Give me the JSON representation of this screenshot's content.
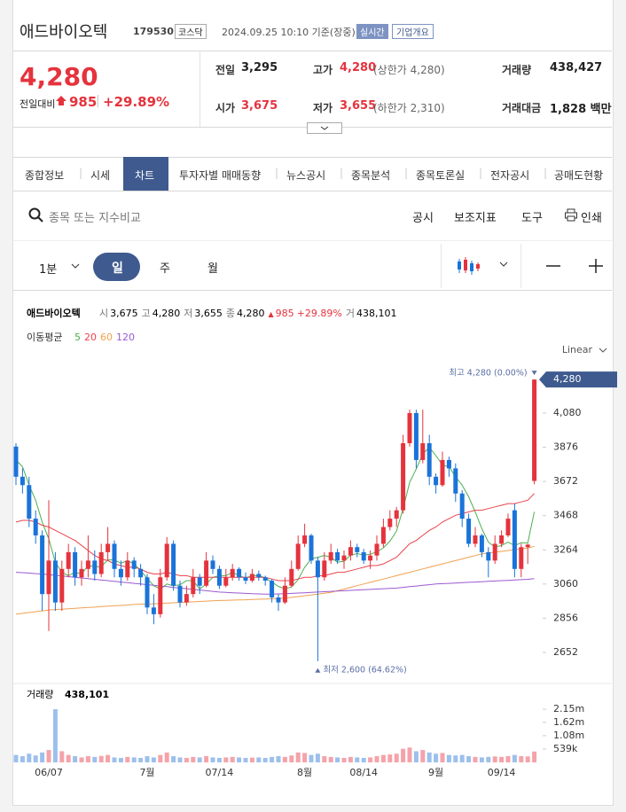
{
  "header": {
    "name": "애드바이오텍",
    "code": "179530",
    "market": "코스닥",
    "time": "2024.09.25 10:10 기준(장중)",
    "realtime": "실시간",
    "company": "기업개요"
  },
  "quote": {
    "price": "4,280",
    "change_label": "전일대비",
    "change": "985",
    "rate": "+29.89%",
    "items": [
      {
        "label": "전일",
        "value": "3,295"
      },
      {
        "label": "고가",
        "value": "4,280",
        "note": "(상한가 4,280)"
      },
      {
        "label": "거래량",
        "value": "438,427"
      },
      {
        "label": "시가",
        "value": "3,675"
      },
      {
        "label": "저가",
        "value": "3,655",
        "note": "(하한가 2,310)"
      },
      {
        "label": "거래대금",
        "value": "1,828 백만"
      }
    ]
  },
  "tabs": [
    "종합정보",
    "시세",
    "차트",
    "투자자별 매매동향",
    "뉴스공시",
    "종목분석",
    "종목토론실",
    "전자공시",
    "공매도현황"
  ],
  "toolbar": {
    "search": "종목 또는 지수비교",
    "tools": [
      "공시",
      "보조지표",
      "도구",
      "인쇄"
    ]
  },
  "periods": [
    "1분",
    "일",
    "주",
    "월"
  ],
  "chart_data": {
    "type": "candlestick",
    "scale": "Linear",
    "legend": {
      "name": "애드바이오텍",
      "stats": [
        {
          "label": "시",
          "value": "3,675"
        },
        {
          "label": "고",
          "value": "4,280"
        },
        {
          "label": "저",
          "value": "3,655"
        },
        {
          "label": "종",
          "value": "4,280"
        }
      ],
      "change": "985",
      "rate": "+29.89%",
      "volume": {
        "label": "거",
        "value": "438,101"
      }
    },
    "ma_label": "이동평균",
    "categories": [
      null,
      null,
      null,
      null,
      null,
      "06/07",
      null,
      null,
      null,
      null,
      null,
      null,
      null,
      null,
      null,
      null,
      null,
      null,
      null,
      null,
      "7월",
      null,
      null,
      null,
      null,
      null,
      null,
      null,
      null,
      null,
      null,
      "07/14",
      null,
      null,
      null,
      null,
      null,
      null,
      null,
      null,
      null,
      null,
      null,
      null,
      "8월",
      null,
      null,
      null,
      null,
      null,
      null,
      null,
      null,
      "08/14",
      null,
      null,
      null,
      null,
      null,
      null,
      null,
      null,
      null,
      null,
      "9월",
      null,
      null,
      null,
      null,
      null,
      null,
      null,
      null,
      null,
      "09/14",
      null,
      null,
      null,
      null,
      null
    ],
    "ohlc": [
      [
        3880,
        3900,
        3650,
        3700
      ],
      [
        3700,
        3750,
        3600,
        3650
      ],
      [
        3650,
        3700,
        3400,
        3450
      ],
      [
        3450,
        3500,
        3300,
        3350
      ],
      [
        3350,
        3380,
        2900,
        3000
      ],
      [
        3000,
        3560,
        2780,
        3200
      ],
      [
        3200,
        3250,
        2900,
        2950
      ],
      [
        2950,
        3200,
        2900,
        3150
      ],
      [
        3150,
        3300,
        3100,
        3250
      ],
      [
        3250,
        3280,
        3050,
        3100
      ],
      [
        3100,
        3200,
        3050,
        3150
      ],
      [
        3150,
        3350,
        3100,
        3200
      ],
      [
        3200,
        3260,
        3080,
        3120
      ],
      [
        3120,
        3300,
        3100,
        3250
      ],
      [
        3250,
        3400,
        3200,
        3300
      ],
      [
        3300,
        3320,
        3100,
        3150
      ],
      [
        3150,
        3200,
        3050,
        3100
      ],
      [
        3100,
        3250,
        3080,
        3200
      ],
      [
        3200,
        3220,
        3100,
        3150
      ],
      [
        3150,
        3180,
        3050,
        3100
      ],
      [
        3100,
        3120,
        2880,
        2920
      ],
      [
        2920,
        3000,
        2820,
        2880
      ],
      [
        2880,
        3150,
        2860,
        3100
      ],
      [
        3100,
        3340,
        3080,
        3300
      ],
      [
        3300,
        3320,
        3020,
        3050
      ],
      [
        3050,
        3080,
        2920,
        2950
      ],
      [
        2950,
        3050,
        2930,
        3000
      ],
      [
        3000,
        3150,
        2980,
        3100
      ],
      [
        3100,
        3120,
        3000,
        3050
      ],
      [
        3050,
        3250,
        3040,
        3200
      ],
      [
        3200,
        3230,
        3120,
        3150
      ],
      [
        3150,
        3170,
        3030,
        3050
      ],
      [
        3050,
        3150,
        3040,
        3100
      ],
      [
        3100,
        3180,
        3080,
        3150
      ],
      [
        3150,
        3160,
        3080,
        3100
      ],
      [
        3100,
        3130,
        3060,
        3080
      ],
      [
        3080,
        3150,
        3070,
        3120
      ],
      [
        3120,
        3140,
        3080,
        3100
      ],
      [
        3100,
        3110,
        3050,
        3080
      ],
      [
        3080,
        3090,
        2950,
        2980
      ],
      [
        2980,
        3000,
        2900,
        2950
      ],
      [
        2950,
        3100,
        2940,
        3050
      ],
      [
        3050,
        3200,
        3040,
        3150
      ],
      [
        3150,
        3350,
        3140,
        3300
      ],
      [
        3300,
        3420,
        3280,
        3350
      ],
      [
        3350,
        3360,
        3180,
        3200
      ],
      [
        3200,
        3220,
        2600,
        3100
      ],
      [
        3100,
        3250,
        3080,
        3200
      ],
      [
        3200,
        3300,
        3180,
        3250
      ],
      [
        3250,
        3270,
        3180,
        3200
      ],
      [
        3200,
        3260,
        3150,
        3230
      ],
      [
        3230,
        3320,
        3200,
        3280
      ],
      [
        3280,
        3300,
        3220,
        3250
      ],
      [
        3250,
        3270,
        3180,
        3200
      ],
      [
        3200,
        3260,
        3150,
        3230
      ],
      [
        3230,
        3350,
        3200,
        3300
      ],
      [
        3300,
        3450,
        3280,
        3400
      ],
      [
        3400,
        3500,
        3380,
        3450
      ],
      [
        3450,
        3520,
        3400,
        3500
      ],
      [
        3500,
        3950,
        3480,
        3900
      ],
      [
        3900,
        4100,
        3880,
        4080
      ],
      [
        4080,
        4100,
        3750,
        3800
      ],
      [
        3800,
        4100,
        3780,
        3900
      ],
      [
        3900,
        3950,
        3650,
        3700
      ],
      [
        3700,
        3720,
        3600,
        3650
      ],
      [
        3650,
        3850,
        3640,
        3800
      ],
      [
        3800,
        3820,
        3700,
        3750
      ],
      [
        3750,
        3780,
        3550,
        3600
      ],
      [
        3600,
        3620,
        3400,
        3450
      ],
      [
        3450,
        3480,
        3280,
        3300
      ],
      [
        3300,
        3400,
        3280,
        3350
      ],
      [
        3350,
        3360,
        3220,
        3250
      ],
      [
        3250,
        3280,
        3100,
        3200
      ],
      [
        3200,
        3350,
        3180,
        3300
      ],
      [
        3300,
        3380,
        3280,
        3350
      ],
      [
        3350,
        3480,
        3340,
        3450
      ],
      [
        3500,
        3540,
        3100,
        3150
      ],
      [
        3150,
        3300,
        3100,
        3280
      ],
      [
        3280,
        3300,
        3180,
        3295
      ],
      [
        3675,
        4280,
        3655,
        4280
      ]
    ],
    "up_color": "#e5333d",
    "down_color": "#1a73d9",
    "series": [
      {
        "name": "5",
        "color": "#4caf50",
        "values": [
          3800,
          3760,
          3650,
          3560,
          3430,
          3330,
          3190,
          3130,
          3110,
          3130,
          3120,
          3170,
          3164,
          3164,
          3204,
          3204,
          3184,
          3200,
          3180,
          3140,
          3094,
          3050,
          3030,
          3060,
          3050,
          3056,
          3080,
          3080,
          3030,
          3060,
          3100,
          3110,
          3110,
          3130,
          3110,
          3096,
          3110,
          3110,
          3096,
          3072,
          3046,
          3032,
          3042,
          3086,
          3160,
          3210,
          3220,
          3230,
          3220,
          3190,
          3196,
          3232,
          3242,
          3232,
          3238,
          3252,
          3276,
          3316,
          3376,
          3510,
          3666,
          3746,
          3836,
          3876,
          3826,
          3770,
          3760,
          3700,
          3650,
          3580,
          3490,
          3390,
          3310,
          3280,
          3290,
          3310,
          3290,
          3306,
          3305,
          3491
        ]
      },
      {
        "name": "20",
        "color": "#e8434b",
        "values": [
          3430,
          3440,
          3440,
          3430,
          3410,
          3400,
          3380,
          3360,
          3340,
          3320,
          3290,
          3260,
          3230,
          3210,
          3200,
          3180,
          3170,
          3160,
          3160,
          3150,
          3130,
          3120,
          3120,
          3130,
          3120,
          3110,
          3110,
          3100,
          3100,
          3100,
          3100,
          3100,
          3100,
          3100,
          3100,
          3100,
          3100,
          3100,
          3100,
          3090,
          3080,
          3080,
          3080,
          3090,
          3100,
          3100,
          3110,
          3110,
          3120,
          3130,
          3130,
          3140,
          3150,
          3160,
          3170,
          3170,
          3180,
          3200,
          3220,
          3260,
          3300,
          3320,
          3350,
          3380,
          3400,
          3430,
          3450,
          3470,
          3480,
          3490,
          3500,
          3500,
          3510,
          3520,
          3530,
          3540,
          3540,
          3550,
          3560,
          3600
        ]
      },
      {
        "name": "60",
        "color": "#f0a050",
        "values": [
          2880,
          2885,
          2890,
          2895,
          2900,
          2905,
          2908,
          2910,
          2912,
          2915,
          2918,
          2920,
          2922,
          2925,
          2928,
          2930,
          2932,
          2935,
          2938,
          2940,
          2940,
          2942,
          2944,
          2946,
          2948,
          2950,
          2952,
          2954,
          2956,
          2958,
          2960,
          2962,
          2963,
          2964,
          2965,
          2966,
          2968,
          2969,
          2970,
          2972,
          2974,
          2976,
          2980,
          2985,
          2990,
          2995,
          3000,
          3005,
          3010,
          3020,
          3030,
          3040,
          3050,
          3060,
          3070,
          3080,
          3090,
          3100,
          3110,
          3120,
          3130,
          3140,
          3150,
          3160,
          3170,
          3180,
          3190,
          3200,
          3210,
          3220,
          3230,
          3240,
          3245,
          3250,
          3255,
          3260,
          3265,
          3270,
          3275,
          3285
        ]
      },
      {
        "name": "120",
        "color": "#9b59d0",
        "values": [
          3130,
          3128,
          3125,
          3122,
          3120,
          3116,
          3112,
          3108,
          3104,
          3100,
          3096,
          3092,
          3088,
          3084,
          3080,
          3076,
          3072,
          3068,
          3064,
          3060,
          3056,
          3052,
          3048,
          3044,
          3040,
          3036,
          3032,
          3028,
          3024,
          3020,
          3016,
          3012,
          3010,
          3008,
          3006,
          3004,
          3002,
          3001,
          3000,
          3000,
          3001,
          3002,
          3004,
          3006,
          3008,
          3010,
          3012,
          3014,
          3016,
          3018,
          3020,
          3022,
          3024,
          3026,
          3028,
          3030,
          3032,
          3034,
          3036,
          3040,
          3044,
          3048,
          3052,
          3056,
          3060,
          3062,
          3064,
          3066,
          3068,
          3070,
          3072,
          3074,
          3076,
          3078,
          3080,
          3082,
          3084,
          3086,
          3088,
          3092
        ]
      }
    ],
    "ylim": [
      2472,
      4376
    ],
    "yticks": [
      2652,
      2856,
      3060,
      3264,
      3468,
      3672,
      3876,
      {
        "value": 4080,
        "label": "4,080"
      }
    ],
    "last_label": "4,280",
    "annotations": {
      "high": "최고 4,280 (0.00%)",
      "low": "최저 2,600 (64.62%)"
    },
    "volume": {
      "name": "거래량",
      "last": "438,101",
      "up_color": "#f4a3aa",
      "down_color": "#9cc0ec",
      "values": [
        300000,
        250000,
        350000,
        280000,
        400000,
        500000,
        2150000,
        450000,
        300000,
        250000,
        200000,
        250000,
        220000,
        260000,
        300000,
        200000,
        180000,
        220000,
        200000,
        180000,
        250000,
        200000,
        300000,
        400000,
        250000,
        200000,
        180000,
        220000,
        200000,
        250000,
        200000,
        180000,
        200000,
        220000,
        200000,
        180000,
        190000,
        200000,
        180000,
        220000,
        250000,
        220000,
        280000,
        400000,
        380000,
        300000,
        350000,
        250000,
        220000,
        200000,
        180000,
        220000,
        200000,
        180000,
        200000,
        250000,
        300000,
        320000,
        350000,
        550000,
        600000,
        450000,
        500000,
        400000,
        350000,
        380000,
        300000,
        280000,
        300000,
        250000,
        220000,
        200000,
        220000,
        240000,
        220000,
        250000,
        300000,
        250000,
        240000,
        438101
      ],
      "ylim": [
        0,
        3050000
      ],
      "yticks": [
        {
          "value": 539000,
          "label": "539k"
        },
        {
          "value": 1080000,
          "label": "1.08m"
        },
        {
          "value": 1620000,
          "label": "1.62m"
        },
        {
          "value": 2150000,
          "label": "2.15m"
        }
      ]
    }
  }
}
